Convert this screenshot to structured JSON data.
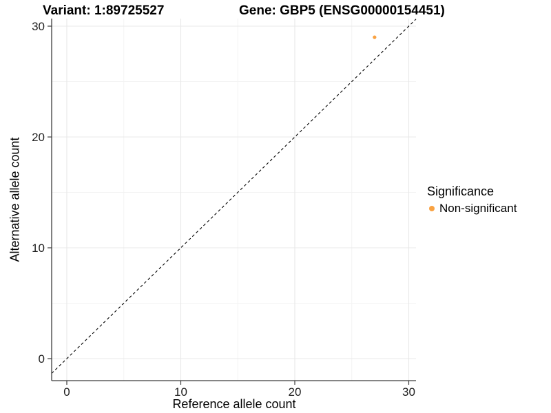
{
  "titles": {
    "variant": "Variant: 1:89725527",
    "gene": "Gene: GBP5 (ENSG00000154451)"
  },
  "chart_data": {
    "type": "scatter",
    "xlabel": "Reference allele count",
    "ylabel": "Alternative allele count",
    "xlim": [
      -1.3,
      30.6
    ],
    "ylim": [
      -2,
      30.7
    ],
    "x_ticks": [
      "0",
      "10",
      "20",
      "30"
    ],
    "y_ticks": [
      "0",
      "10",
      "20",
      "30"
    ],
    "x_minor_ticks": [
      5,
      15,
      25
    ],
    "y_minor_ticks": [
      5,
      15,
      25
    ],
    "grid": "major and minor, light gray on white",
    "points": [
      {
        "x": 27,
        "y": 29,
        "series": "Non-significant",
        "color": "#F9A242"
      }
    ],
    "reference_line": {
      "type": "identity",
      "slope": 1,
      "intercept": 0,
      "style": "dashed",
      "color": "#000000"
    },
    "legend": {
      "title": "Significance",
      "position": "right",
      "entries": [
        {
          "label": "Non-significant",
          "color": "#F9A242"
        }
      ]
    }
  },
  "colors": {
    "point": "#F9A242",
    "axis_line": "#3c3c3c",
    "tick_text": "#1e1e1e",
    "grid_major": "#e8e8e8",
    "grid_minor": "#f3f3f3",
    "background": "#ffffff"
  }
}
